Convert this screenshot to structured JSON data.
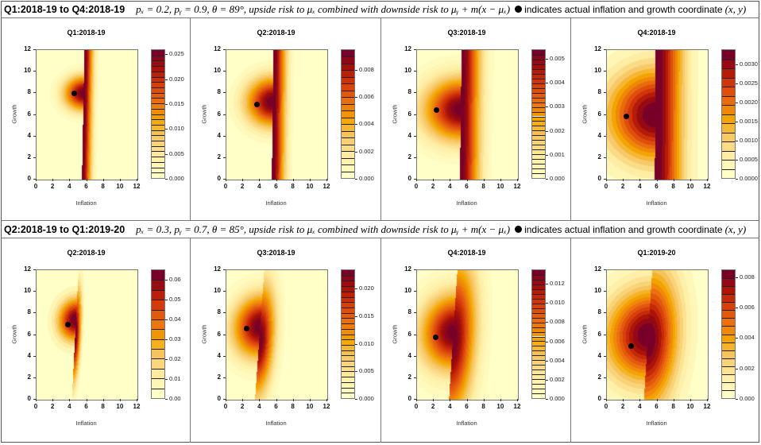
{
  "rows": [
    {
      "range_label": "Q1:2018-19 to Q4:2018-19",
      "params": "pₓ = 0.2,  pᵧ = 0.9,  θ = 89°, upside risk to μₓ combined with downside risk to μᵧ + m(x − μₓ)",
      "legend_text": "indicates actual inflation and growth coordinate",
      "legend_coord": "(x, y)"
    },
    {
      "range_label": "Q2:2018-19 to Q1:2019-20",
      "params": "pₓ = 0.3,  pᵧ = 0.7,  θ = 85°,  upside risk to μₓ combined with downside risk to μᵧ + m(x − μₓ)",
      "legend_text": "indicates actual inflation and growth coordinate",
      "legend_coord": "(x, y)"
    }
  ],
  "chart_data": [
    {
      "type": "heatmap",
      "title": "Q1:2018-19",
      "xlabel": "Inflation",
      "ylabel": "Growth",
      "xlim": [
        0,
        12
      ],
      "ylim": [
        0,
        12
      ],
      "xticks": [
        "0",
        "2",
        "4",
        "6",
        "8",
        "10",
        "12"
      ],
      "yticks": [
        "0",
        "2",
        "4",
        "6",
        "8",
        "10",
        "12"
      ],
      "zlim": [
        0,
        0.026
      ],
      "colorbar_ticks": [
        "0.000",
        "0.005",
        "0.010",
        "0.015",
        "0.020",
        "0.025"
      ],
      "colorbar_values": [
        0,
        0.005,
        0.01,
        0.015,
        0.02,
        0.025
      ],
      "levels": 24,
      "point": {
        "x": 4.6,
        "y": 7.9
      }
    },
    {
      "type": "heatmap",
      "title": "Q2:2018-19",
      "xlabel": "Inflation",
      "ylabel": "Growth",
      "xlim": [
        0,
        12
      ],
      "ylim": [
        0,
        12
      ],
      "xticks": [
        "0",
        "2",
        "4",
        "6",
        "8",
        "10",
        "12"
      ],
      "yticks": [
        "0",
        "2",
        "4",
        "6",
        "8",
        "10",
        "12"
      ],
      "zlim": [
        0,
        0.0095
      ],
      "colorbar_ticks": [
        "0.000",
        "0.002",
        "0.004",
        "0.006",
        "0.008"
      ],
      "colorbar_values": [
        0,
        0.002,
        0.004,
        0.006,
        0.008
      ],
      "levels": 19,
      "point": {
        "x": 3.7,
        "y": 6.9
      }
    },
    {
      "type": "heatmap",
      "title": "Q3:2018-19",
      "xlabel": "Inflation",
      "ylabel": "Growth",
      "xlim": [
        0,
        12
      ],
      "ylim": [
        0,
        12
      ],
      "xticks": [
        "0",
        "2",
        "4",
        "6",
        "8",
        "10",
        "12"
      ],
      "yticks": [
        "0",
        "2",
        "4",
        "6",
        "8",
        "10",
        "12"
      ],
      "zlim": [
        0,
        0.0054
      ],
      "colorbar_ticks": [
        "0.000",
        "0.001",
        "0.002",
        "0.003",
        "0.004",
        "0.005"
      ],
      "colorbar_values": [
        0,
        0.001,
        0.002,
        0.003,
        0.004,
        0.005
      ],
      "levels": 27,
      "point": {
        "x": 2.4,
        "y": 6.4
      }
    },
    {
      "type": "heatmap",
      "title": "Q4:2018-19",
      "xlabel": "Inflation",
      "ylabel": "Growth",
      "xlim": [
        0,
        12
      ],
      "ylim": [
        0,
        12
      ],
      "xticks": [
        "0",
        "2",
        "4",
        "6",
        "8",
        "10",
        "12"
      ],
      "yticks": [
        "0",
        "2",
        "4",
        "6",
        "8",
        "10",
        "12"
      ],
      "zlim": [
        0,
        0.0034
      ],
      "colorbar_ticks": [
        "0.0000",
        "0.0005",
        "0.0010",
        "0.0015",
        "0.0020",
        "0.0025",
        "0.0030"
      ],
      "colorbar_values": [
        0,
        0.0005,
        0.001,
        0.0015,
        0.002,
        0.0025,
        0.003
      ],
      "levels": 14,
      "point": {
        "x": 2.4,
        "y": 5.8
      }
    },
    {
      "type": "heatmap",
      "title": "Q2:2018-19",
      "xlabel": "Inflation",
      "ylabel": "Growth",
      "xlim": [
        0,
        12
      ],
      "ylim": [
        0,
        12
      ],
      "xticks": [
        "0",
        "2",
        "4",
        "6",
        "8",
        "10",
        "12"
      ],
      "yticks": [
        "0",
        "2",
        "4",
        "6",
        "8",
        "10",
        "12"
      ],
      "zlim": [
        0,
        0.065
      ],
      "colorbar_ticks": [
        "0.00",
        "0.01",
        "0.02",
        "0.03",
        "0.04",
        "0.05",
        "0.06"
      ],
      "colorbar_values": [
        0,
        0.01,
        0.02,
        0.03,
        0.04,
        0.05,
        0.06
      ],
      "levels": 13,
      "point": {
        "x": 3.8,
        "y": 6.9
      }
    },
    {
      "type": "heatmap",
      "title": "Q3:2018-19",
      "xlabel": "Inflation",
      "ylabel": "Growth",
      "xlim": [
        0,
        12
      ],
      "ylim": [
        0,
        12
      ],
      "xticks": [
        "0",
        "2",
        "4",
        "6",
        "8",
        "10",
        "12"
      ],
      "yticks": [
        "0",
        "2",
        "4",
        "6",
        "8",
        "10",
        "12"
      ],
      "zlim": [
        0,
        0.0235
      ],
      "colorbar_ticks": [
        "0.000",
        "0.005",
        "0.010",
        "0.015",
        "0.020"
      ],
      "colorbar_values": [
        0,
        0.005,
        0.01,
        0.015,
        0.02
      ],
      "levels": 24,
      "point": {
        "x": 2.5,
        "y": 6.5
      }
    },
    {
      "type": "heatmap",
      "title": "Q4:2018-19",
      "xlabel": "Inflation",
      "ylabel": "Growth",
      "xlim": [
        0,
        12
      ],
      "ylim": [
        0,
        12
      ],
      "xticks": [
        "0",
        "2",
        "4",
        "6",
        "8",
        "10",
        "12"
      ],
      "yticks": [
        "0",
        "2",
        "4",
        "6",
        "8",
        "10",
        "12"
      ],
      "zlim": [
        0,
        0.0135
      ],
      "colorbar_ticks": [
        "0.000",
        "0.002",
        "0.004",
        "0.006",
        "0.008",
        "0.010",
        "0.012"
      ],
      "colorbar_values": [
        0,
        0.002,
        0.004,
        0.006,
        0.008,
        0.01,
        0.012
      ],
      "levels": 27,
      "point": {
        "x": 2.3,
        "y": 5.7
      }
    },
    {
      "type": "heatmap",
      "title": "Q1:2019-20",
      "xlabel": "Inflation",
      "ylabel": "Growth",
      "xlim": [
        0,
        12
      ],
      "ylim": [
        0,
        12
      ],
      "xticks": [
        "0",
        "2",
        "4",
        "6",
        "8",
        "10",
        "12"
      ],
      "yticks": [
        "0",
        "2",
        "4",
        "6",
        "8",
        "10",
        "12"
      ],
      "zlim": [
        0,
        0.0085
      ],
      "colorbar_ticks": [
        "0.000",
        "0.002",
        "0.004",
        "0.006",
        "0.008"
      ],
      "colorbar_values": [
        0,
        0.002,
        0.004,
        0.006,
        0.008
      ],
      "levels": 16,
      "point": {
        "x": 3,
        "y": 4.9
      }
    }
  ]
}
